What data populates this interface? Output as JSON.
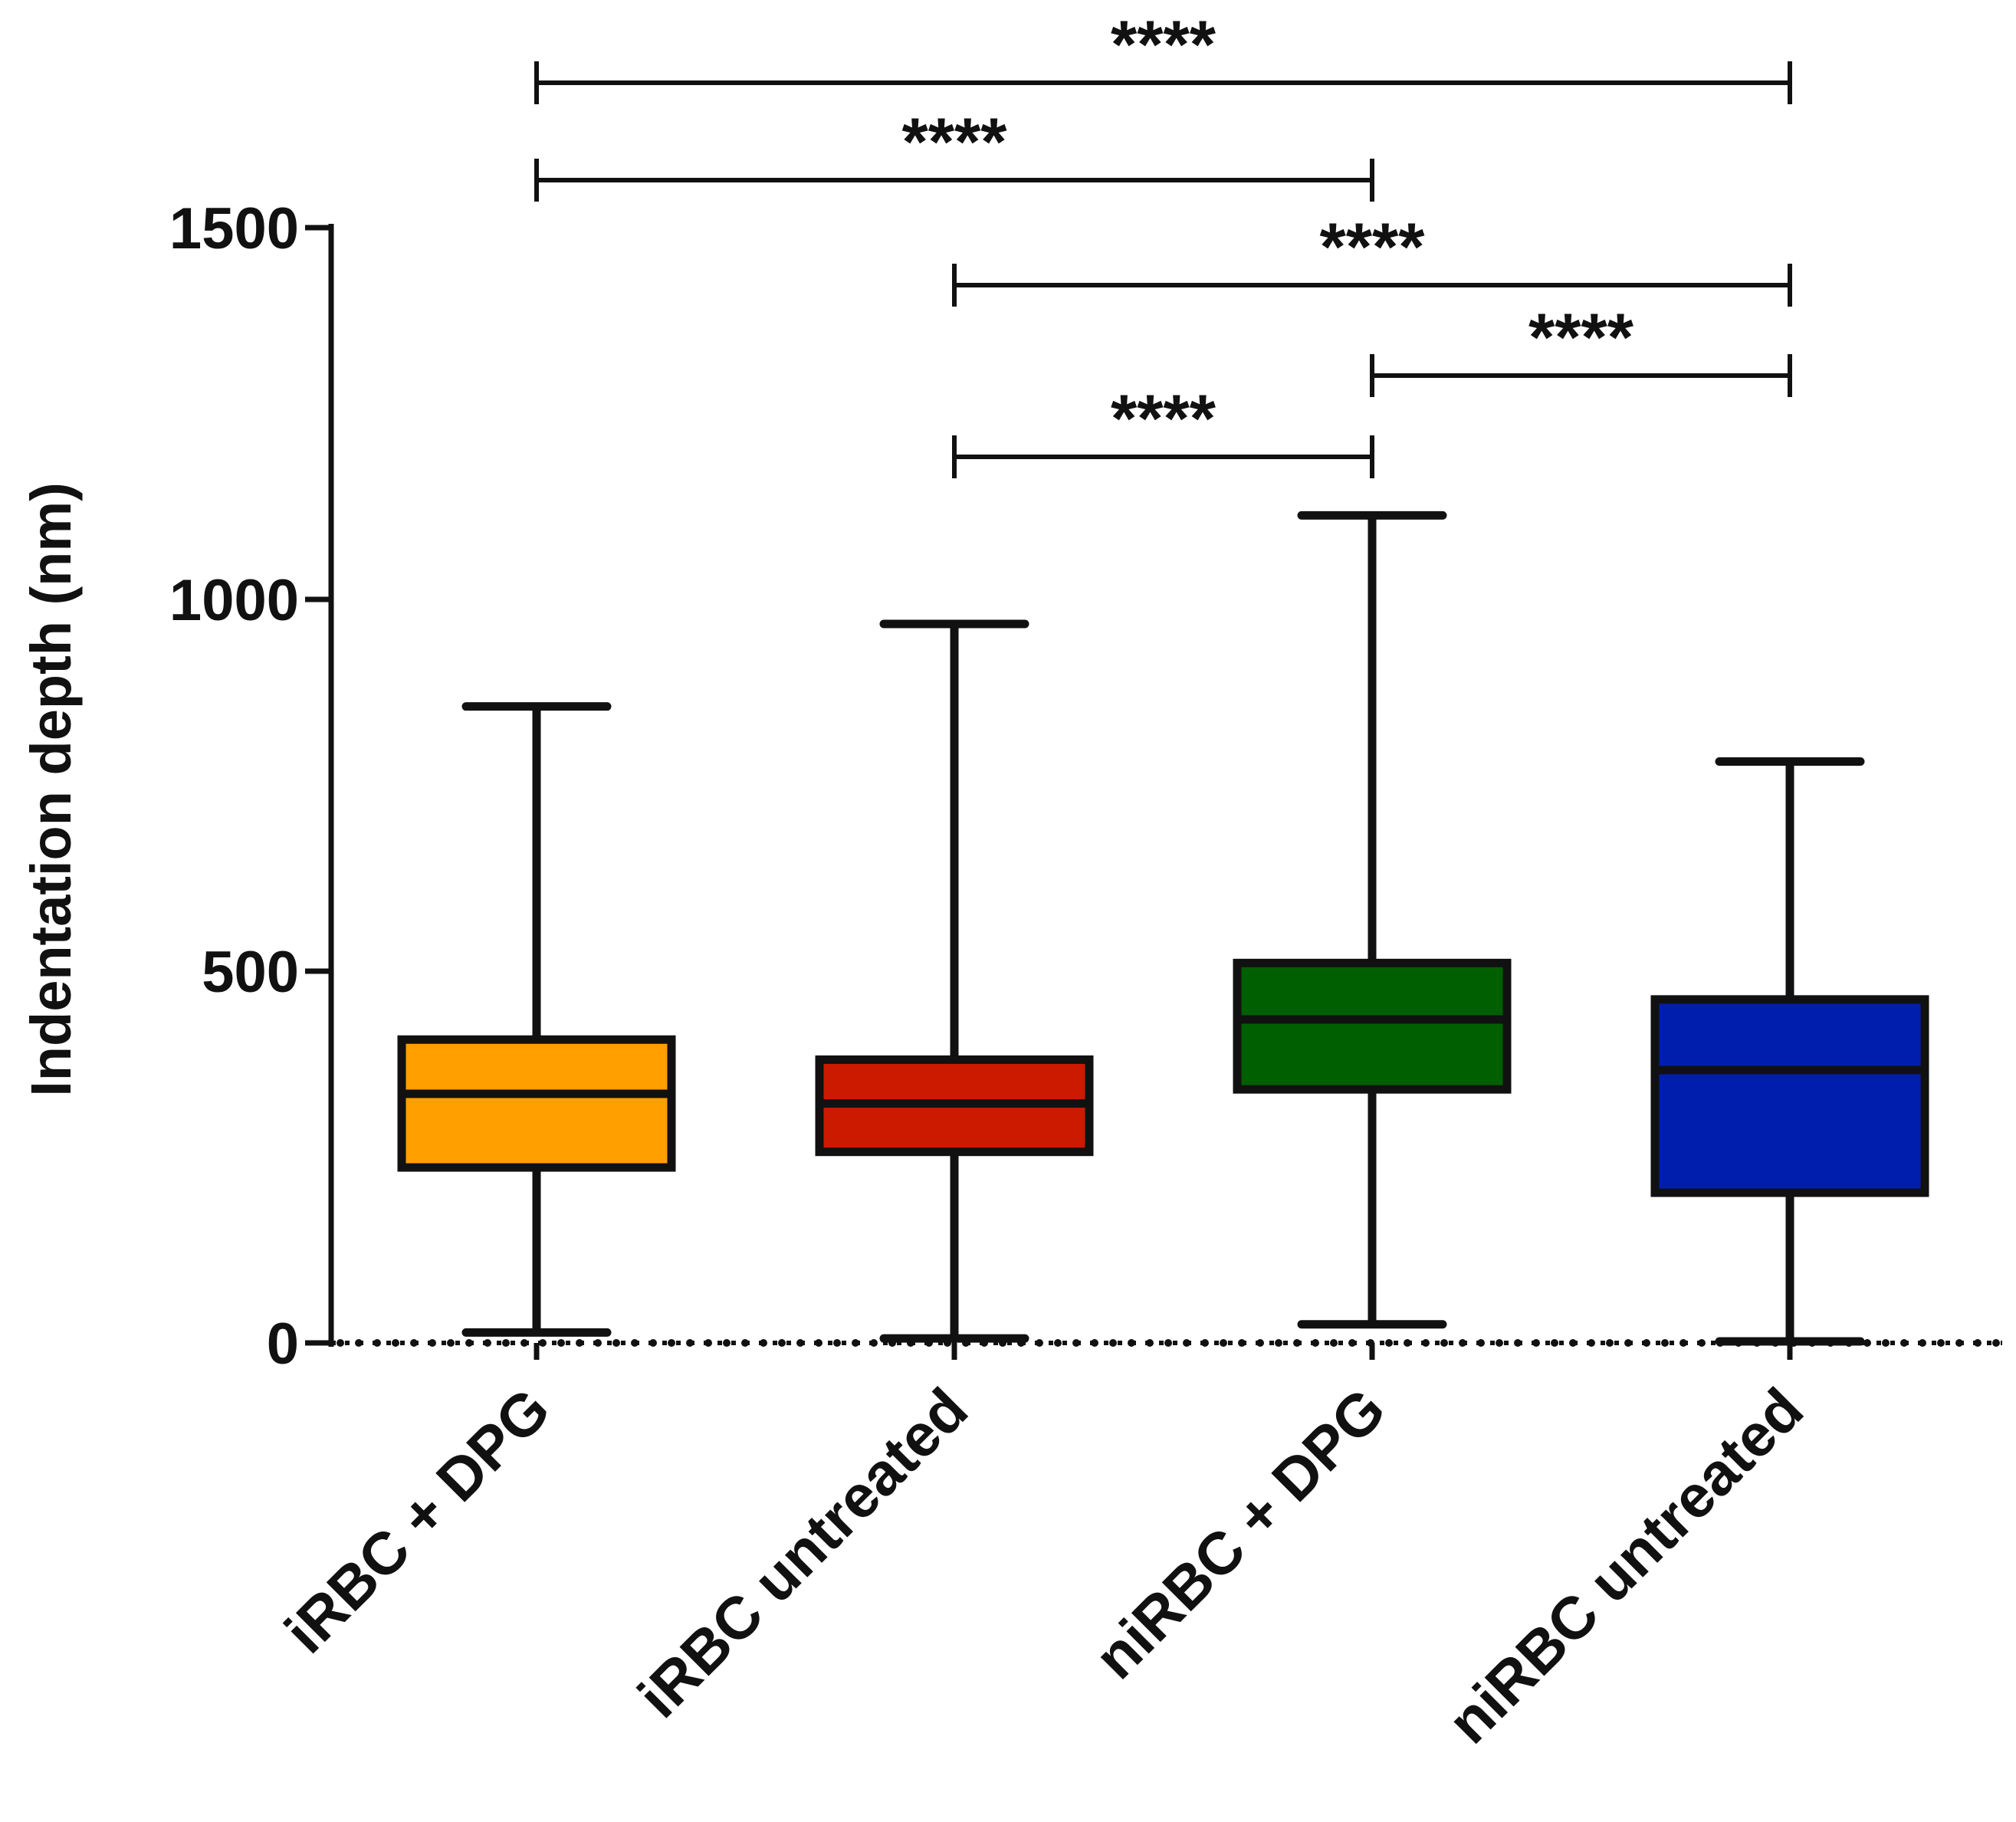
{
  "chart_data": {
    "type": "boxplot",
    "title": "",
    "xlabel": "",
    "ylabel": "Indentation depth (nm)",
    "ylim": [
      0,
      1500
    ],
    "yticks": [
      0,
      500,
      1000,
      1500
    ],
    "ytick_labels": [
      "0",
      "500",
      "1000",
      "1500"
    ],
    "reference_line": {
      "y": 0,
      "style": "dotted"
    },
    "categories": [
      "iRBC + DPG",
      "iRBC untreated",
      "niRBC + DPG",
      "niRBC untreated"
    ],
    "series": [
      {
        "name": "iRBC + DPG",
        "min": 14,
        "q1": 236,
        "median": 335,
        "q3": 408,
        "max": 856,
        "color": "#FF9F00"
      },
      {
        "name": "iRBC untreated",
        "min": 6,
        "q1": 257,
        "median": 322,
        "q3": 381,
        "max": 967,
        "color": "#CC1A00"
      },
      {
        "name": "niRBC + DPG",
        "min": 25,
        "q1": 341,
        "median": 435,
        "q3": 511,
        "max": 1113,
        "color": "#005F00"
      },
      {
        "name": "niRBC untreated",
        "min": 2,
        "q1": 202,
        "median": 367,
        "q3": 462,
        "max": 782,
        "color": "#001EAE"
      }
    ],
    "significance": [
      {
        "from": "iRBC + DPG",
        "to": "niRBC untreated",
        "label": "****"
      },
      {
        "from": "iRBC + DPG",
        "to": "niRBC + DPG",
        "label": "****"
      },
      {
        "from": "iRBC untreated",
        "to": "niRBC untreated",
        "label": "****"
      },
      {
        "from": "niRBC + DPG",
        "to": "niRBC untreated",
        "label": "****"
      },
      {
        "from": "iRBC untreated",
        "to": "niRBC + DPG",
        "label": "****"
      }
    ]
  }
}
